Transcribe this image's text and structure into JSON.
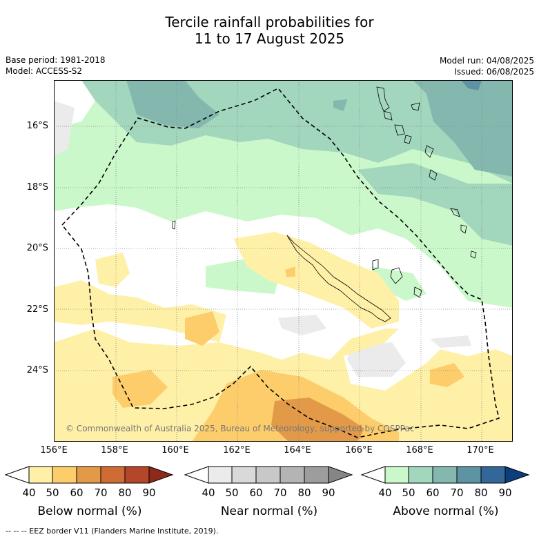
{
  "title_line1": "Tercile rainfall probabilities for",
  "title_line2": "11 to 17 August 2025",
  "left_meta": [
    "Base period: 1981-2018",
    "Model: ACCESS-S2"
  ],
  "right_meta": [
    "Model run: 04/08/2025",
    "Issued: 06/08/2025"
  ],
  "lat_labels": [
    "16°S",
    "18°S",
    "20°S",
    "22°S",
    "24°S"
  ],
  "lon_labels": [
    "156°E",
    "158°E",
    "160°E",
    "162°E",
    "164°E",
    "166°E",
    "168°E",
    "170°E"
  ],
  "copyright": "© Commonwealth of Australia 2025, Bureau of Meteorology, supported by COSPPac",
  "colorbars": [
    {
      "title": "Below normal (%)",
      "ticks": [
        "40",
        "50",
        "60",
        "70",
        "80",
        "90"
      ],
      "colors": [
        "#fff0a8",
        "#fecd6b",
        "#e39a48",
        "#cf6c35",
        "#b4472a",
        "#8e2a1c"
      ]
    },
    {
      "title": "Near normal (%)",
      "ticks": [
        "40",
        "50",
        "60",
        "70",
        "80",
        "90"
      ],
      "colors": [
        "#ebebeb",
        "#d9d9d9",
        "#c8c8c8",
        "#b4b4b4",
        "#9d9d9d",
        "#858585"
      ]
    },
    {
      "title": "Above normal (%)",
      "ticks": [
        "40",
        "50",
        "60",
        "70",
        "80",
        "90"
      ],
      "colors": [
        "#caf8cb",
        "#a2d6bd",
        "#84b8ae",
        "#5d93a3",
        "#336699",
        "#0c3e7c"
      ]
    }
  ],
  "footnote": "--  --  -- EEZ border V11 (Flanders Marine Institute, 2019)."
}
